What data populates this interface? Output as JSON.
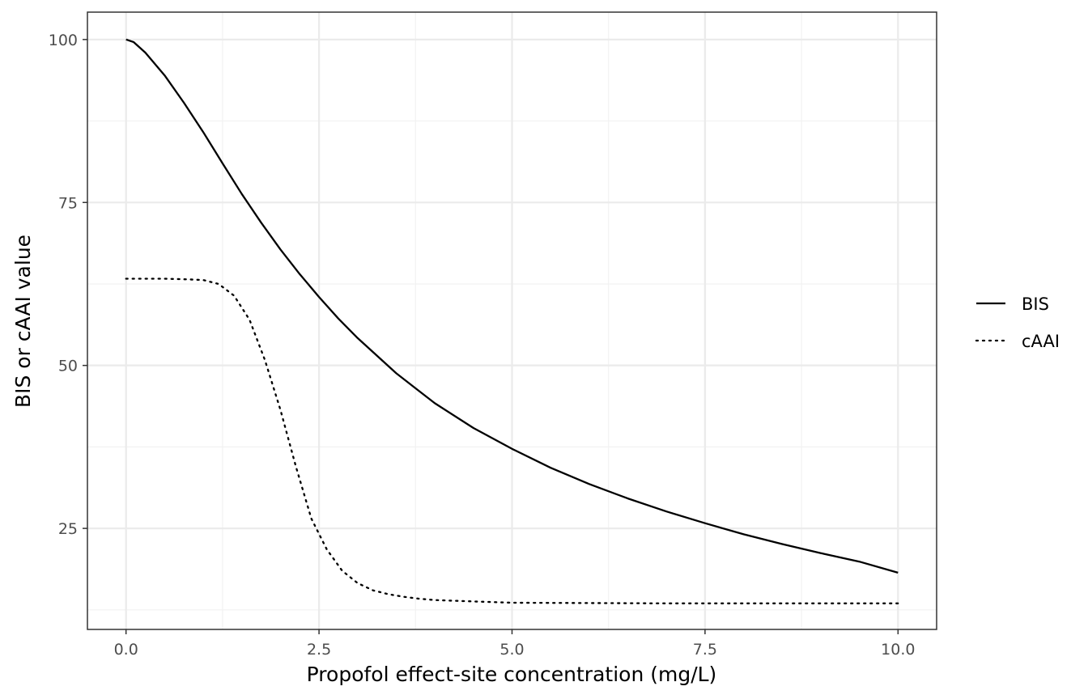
{
  "chart_data": {
    "type": "line",
    "title": "",
    "xlabel": "Propofol effect-site concentration (mg/L)",
    "ylabel": "BIS or cAAI value",
    "xlim": [
      -0.5,
      10.5
    ],
    "ylim": [
      9.5,
      104.2
    ],
    "x_ticks": [
      0,
      2.5,
      5,
      7.5,
      10
    ],
    "x_tick_labels": [
      "0.0",
      "2.5",
      "5.0",
      "7.5",
      "10.0"
    ],
    "y_ticks": [
      25,
      50,
      75,
      100
    ],
    "y_tick_labels": [
      "25",
      "50",
      "75",
      "100"
    ],
    "grid": true,
    "legend_position": "right",
    "colors": {
      "line": "#000000",
      "grid_major": "#ebebeb",
      "grid_minor": "#f2f2f2",
      "panel_border": "#333333"
    },
    "series": [
      {
        "name": "BIS",
        "linestyle": "solid",
        "x": [
          0,
          0.1,
          0.25,
          0.5,
          0.75,
          1.0,
          1.25,
          1.5,
          1.75,
          2.0,
          2.25,
          2.5,
          2.75,
          3.0,
          3.5,
          4.0,
          4.5,
          5.0,
          5.5,
          6.0,
          6.5,
          7.0,
          7.5,
          8.0,
          8.5,
          9.0,
          9.5,
          10.0
        ],
        "y": [
          100,
          99.6,
          98.0,
          94.5,
          90.3,
          85.8,
          81.0,
          76.3,
          71.9,
          67.8,
          64.0,
          60.5,
          57.2,
          54.2,
          48.8,
          44.2,
          40.4,
          37.2,
          34.3,
          31.8,
          29.6,
          27.6,
          25.8,
          24.1,
          22.6,
          21.2,
          19.9,
          18.2
        ]
      },
      {
        "name": "cAAI",
        "linestyle": "dotted",
        "x": [
          0,
          0.5,
          0.8,
          1.0,
          1.2,
          1.4,
          1.6,
          1.8,
          2.0,
          2.2,
          2.4,
          2.6,
          2.8,
          3.0,
          3.2,
          3.4,
          3.6,
          3.8,
          4.0,
          4.5,
          5.0,
          6.0,
          7.0,
          8.0,
          9.0,
          10.0
        ],
        "y": [
          63.3,
          63.3,
          63.2,
          63.1,
          62.5,
          60.7,
          57.0,
          50.8,
          43.2,
          34.5,
          26.5,
          21.8,
          18.5,
          16.6,
          15.5,
          14.9,
          14.5,
          14.2,
          14.0,
          13.8,
          13.6,
          13.55,
          13.5,
          13.5,
          13.5,
          13.5
        ]
      }
    ]
  }
}
